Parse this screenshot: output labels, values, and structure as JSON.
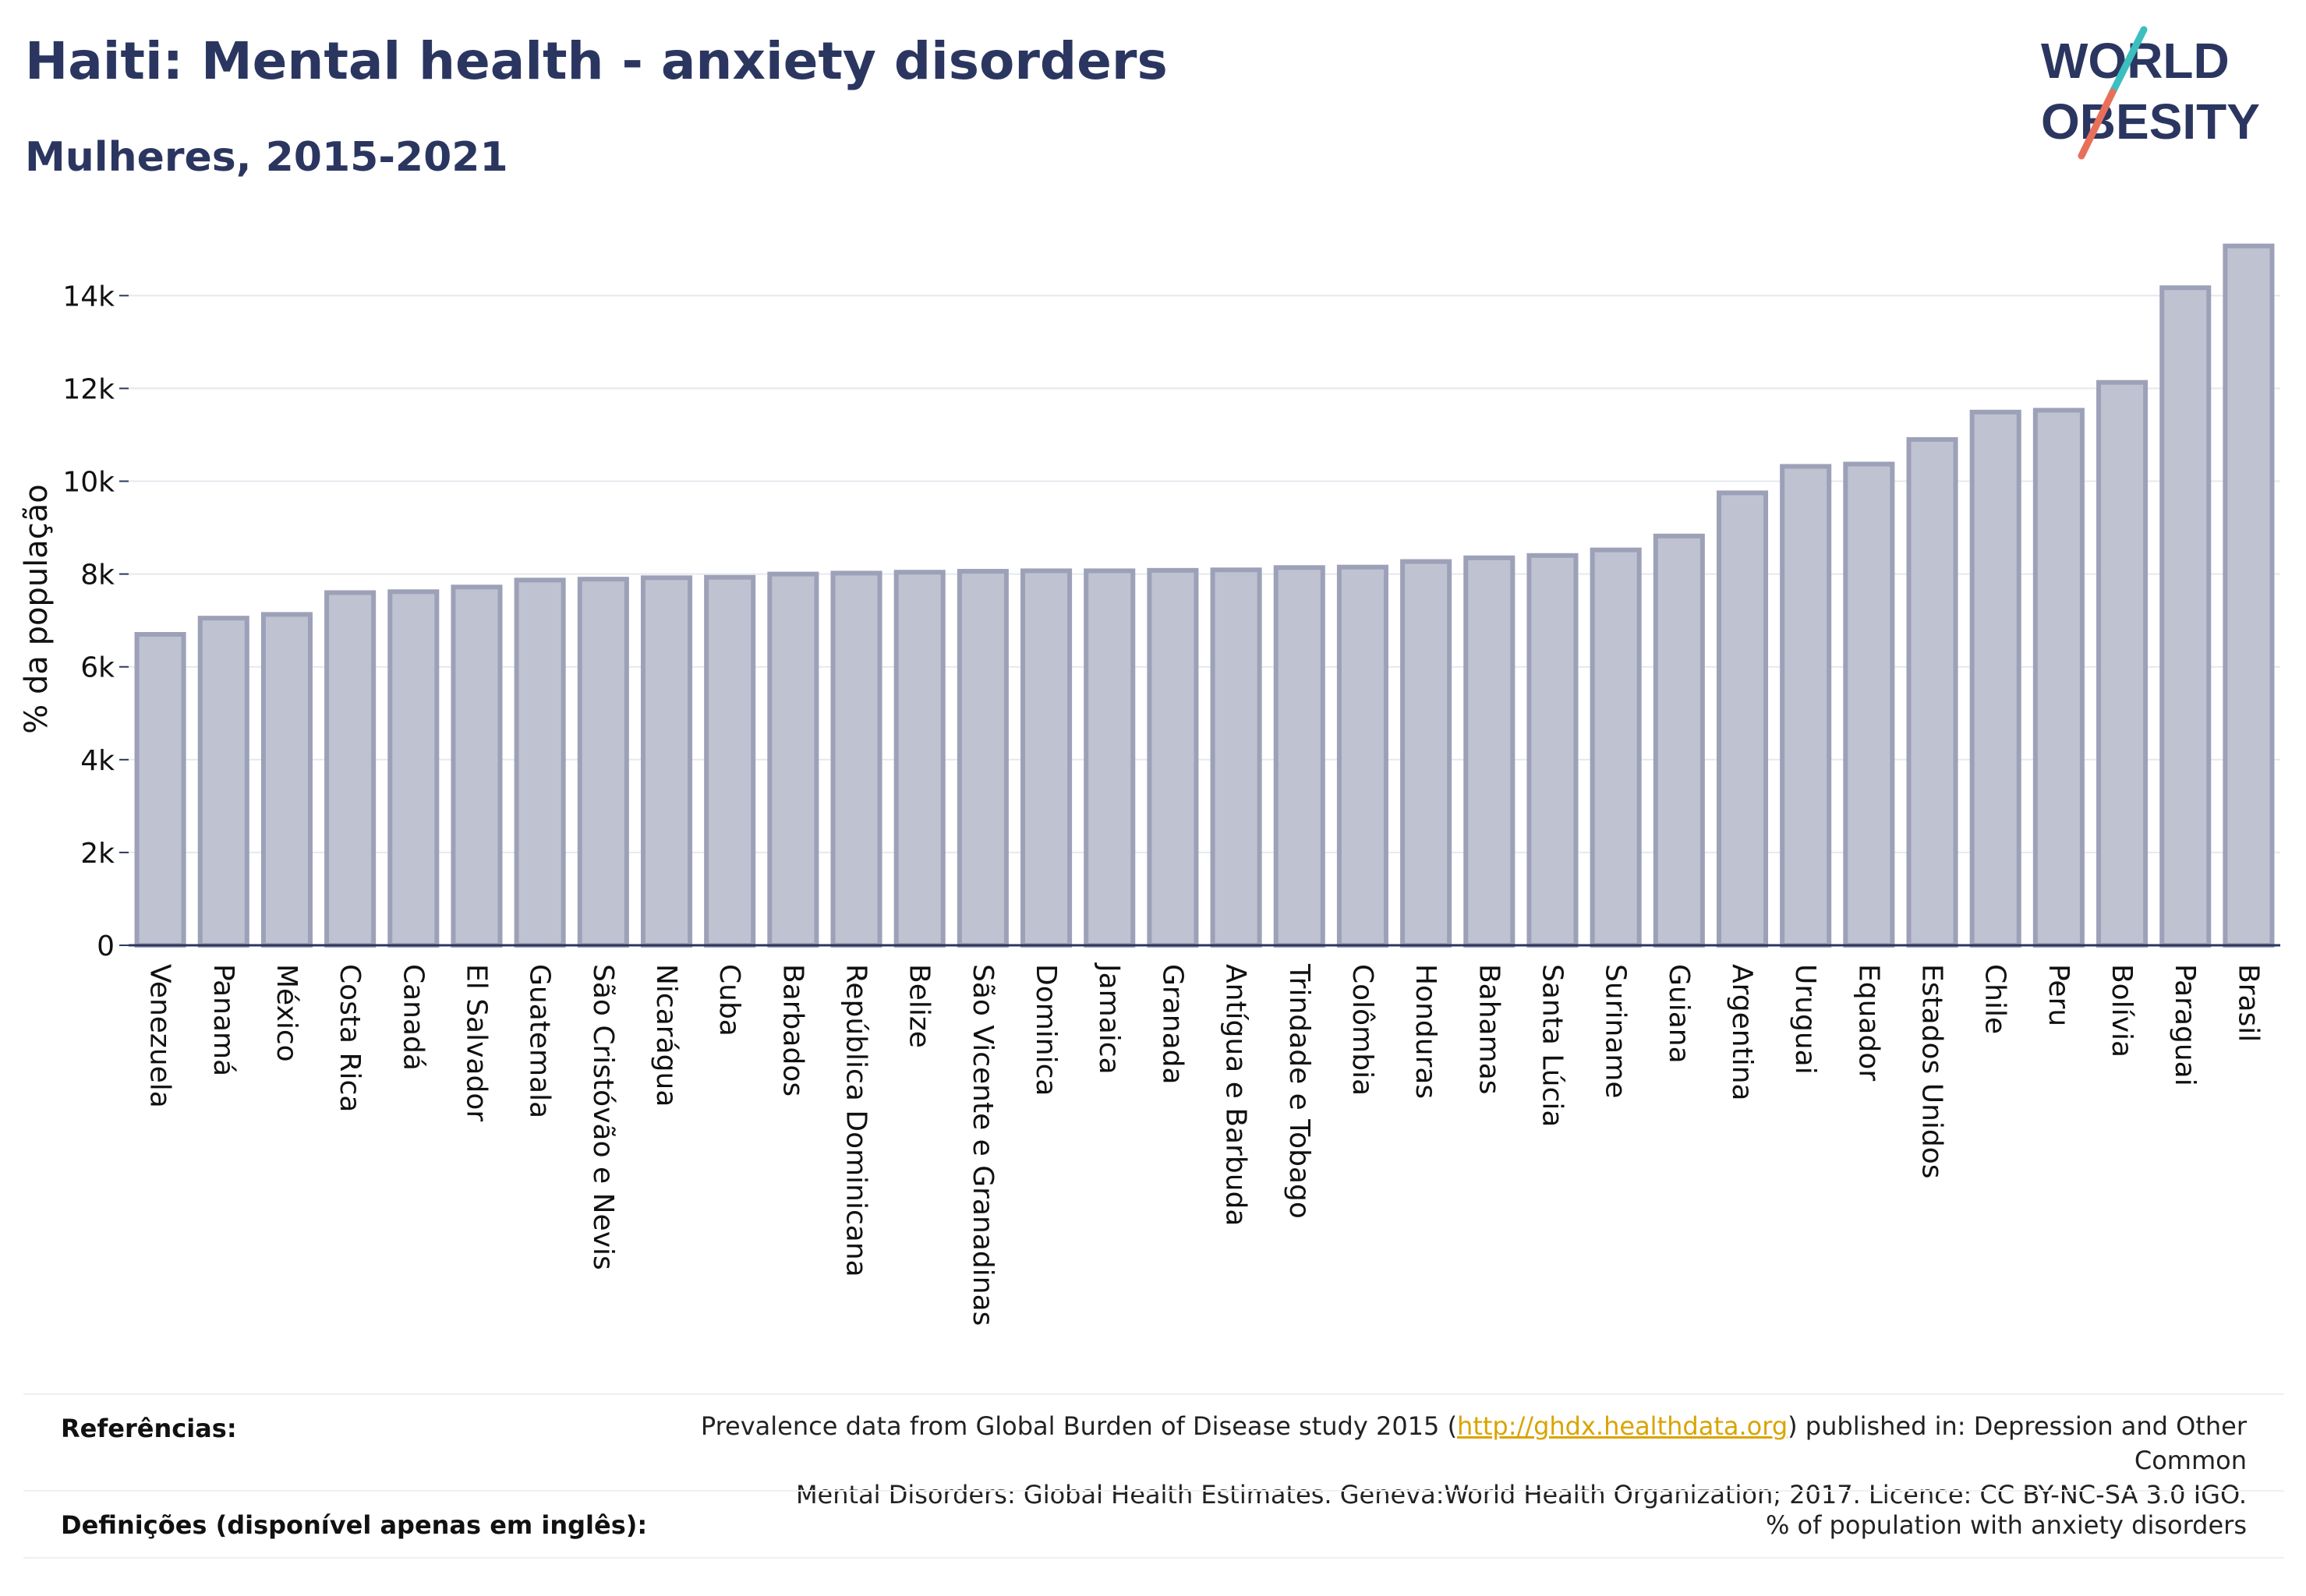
{
  "header": {
    "title": "Haiti: Mental health - anxiety disorders",
    "subtitle": "Mulheres, 2015-2021"
  },
  "logo": {
    "line1": "WORLD",
    "line2": "OBESITY"
  },
  "colors": {
    "bar_fill": "#bfc2d0",
    "bar_stroke": "#9da1b8",
    "text_dark": "#2b3660",
    "logo_teal": "#3bbfbf",
    "logo_coral": "#e8705a",
    "link": "#d9a400"
  },
  "chart_data": {
    "type": "bar",
    "ylabel": "% da população",
    "ylim": [
      0,
      15500
    ],
    "yticks": [
      0,
      2000,
      4000,
      6000,
      8000,
      10000,
      12000,
      14000
    ],
    "ytick_labels": [
      "0",
      "2k",
      "4k",
      "6k",
      "8k",
      "10k",
      "12k",
      "14k"
    ],
    "grid": true,
    "categories": [
      "Venezuela",
      "Panamá",
      "México",
      "Costa Rica",
      "Canadá",
      "El Salvador",
      "Guatemala",
      "São Cristóvão e Nevis",
      "Nicarágua",
      "Cuba",
      "Barbados",
      "República Dominicana",
      "Belize",
      "São Vicente e Granadinas",
      "Dominica",
      "Jamaica",
      "Granada",
      "Antígua e Barbuda",
      "Trindade e Tobago",
      "Colômbia",
      "Honduras",
      "Bahamas",
      "Santa Lúcia",
      "Suriname",
      "Guiana",
      "Argentina",
      "Uruguai",
      "Equador",
      "Estados Unidos",
      "Chile",
      "Peru",
      "Bolívia",
      "Paraguai",
      "Brasil"
    ],
    "values": [
      6700,
      7050,
      7130,
      7600,
      7620,
      7720,
      7870,
      7890,
      7920,
      7930,
      8000,
      8020,
      8040,
      8060,
      8070,
      8070,
      8080,
      8090,
      8140,
      8150,
      8270,
      8350,
      8400,
      8520,
      8820,
      9750,
      10320,
      10370,
      10900,
      11490,
      11530,
      12130,
      14170,
      15070
    ]
  },
  "footer": {
    "ref_label": "Referências:",
    "ref_text_before": "Prevalence data from Global Burden of Disease study 2015 (",
    "ref_link": "http://ghdx.healthdata.org",
    "ref_text_after": ") published in: Depression and Other Common",
    "ref_text_line2": "Mental Disorders: Global Health Estimates. Geneva:World Health Organization; 2017. Licence: CC BY-NC-SA 3.0 IGO.",
    "def_label": "Definições (disponível apenas em inglês):",
    "def_text": "% of population with anxiety disorders"
  }
}
